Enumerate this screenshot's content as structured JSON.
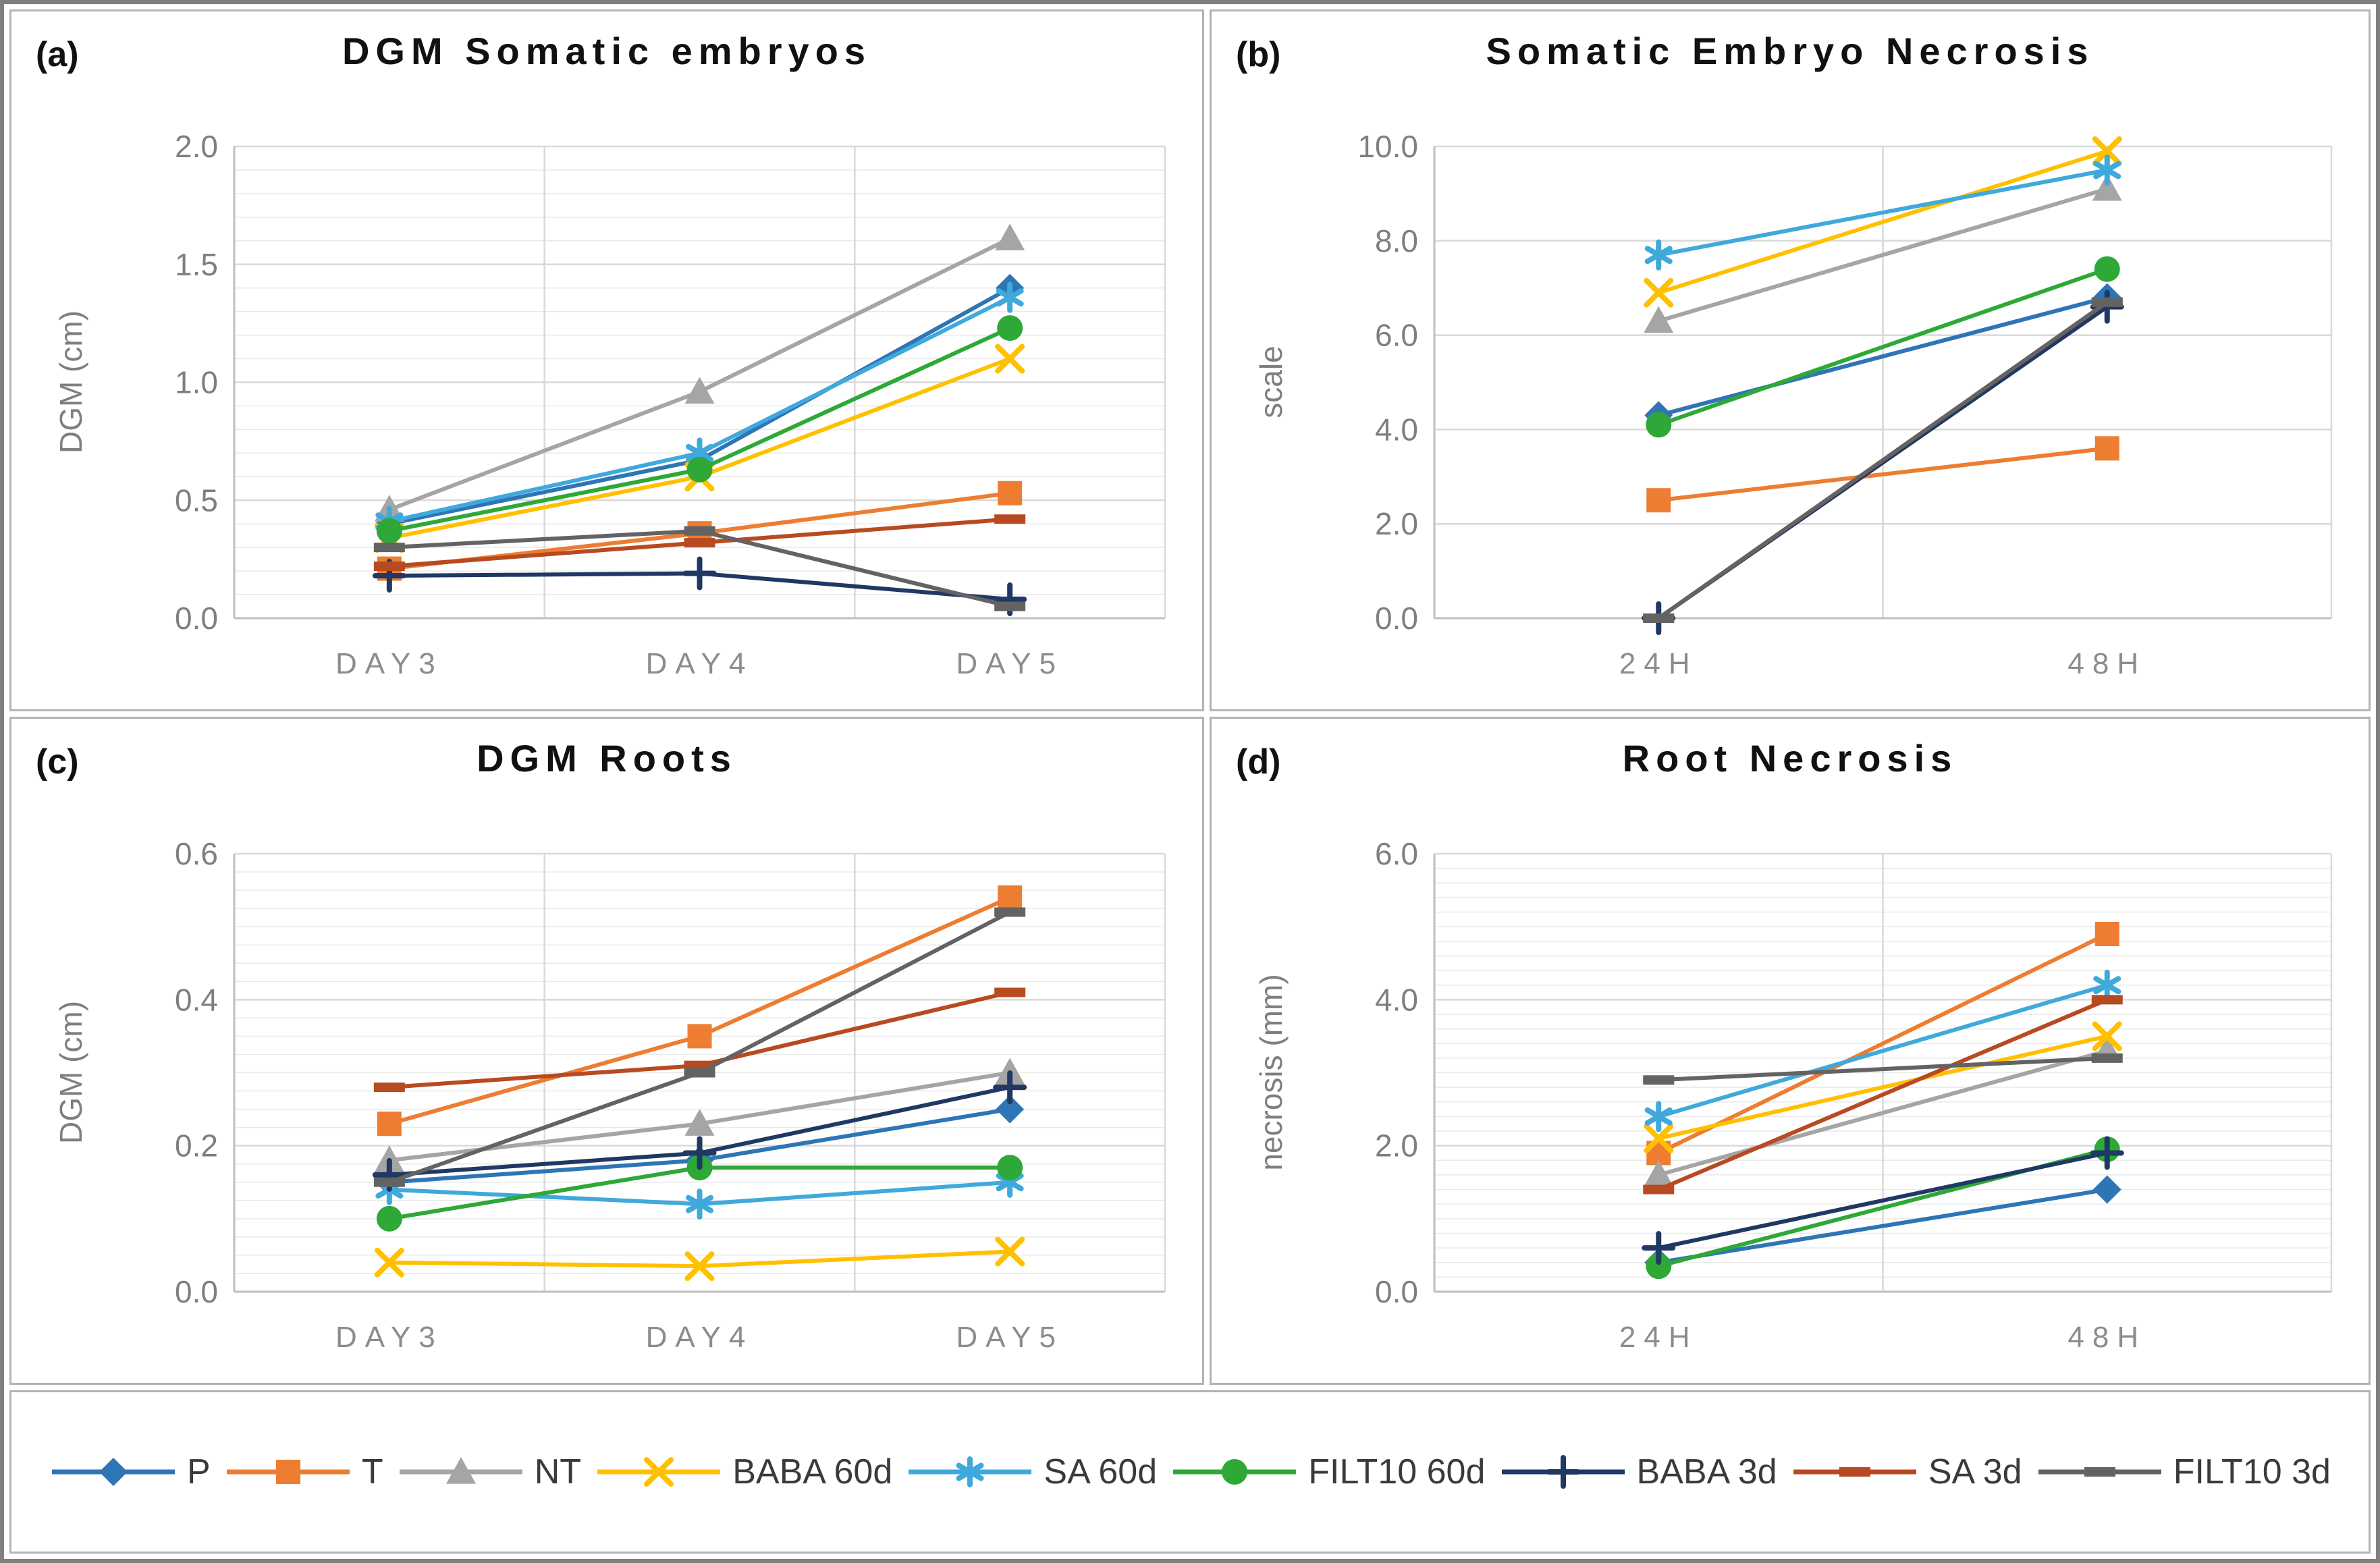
{
  "figure": {
    "background": "#FFFFFF",
    "outer_border_color": "#808080",
    "panel_border_color": "#B3B3B3",
    "gridline_minor_color": "#E9E9E9",
    "gridline_major_color": "#D9D9D9",
    "axis_color": "#BFBFBF",
    "tick_text_color": "#7F7F7F"
  },
  "series_defs": [
    {
      "name": "P",
      "color": "#2E75B6",
      "marker": "diamond"
    },
    {
      "name": "T",
      "color": "#ED7D31",
      "marker": "square"
    },
    {
      "name": "NT",
      "color": "#A5A5A5",
      "marker": "triangle"
    },
    {
      "name": "BABA 60d",
      "color": "#FFC000",
      "marker": "x"
    },
    {
      "name": "SA 60d",
      "color": "#3FA9DC",
      "marker": "asterisk"
    },
    {
      "name": "FILT10 60d",
      "color": "#2EA836",
      "marker": "circle"
    },
    {
      "name": "BABA 3d",
      "color": "#1F3864",
      "marker": "plus"
    },
    {
      "name": "SA 3d",
      "color": "#B84A22",
      "marker": "dash"
    },
    {
      "name": "FILT10 3d",
      "color": "#636363",
      "marker": "dash"
    }
  ],
  "legend": {
    "position": "bottom-shared",
    "items": [
      "P",
      "T",
      "NT",
      "BABA 60d",
      "SA 60d",
      "FILT10 60d",
      "BABA 3d",
      "SA 3d",
      "FILT10 3d"
    ]
  },
  "chart_data": [
    {
      "id": "a",
      "tag": "(a)",
      "title": "DGM Somatic embryos",
      "type": "line",
      "categories": [
        "DAY3",
        "DAY4",
        "DAY5"
      ],
      "xlabel": "",
      "ylabel": "DGM (cm)",
      "ylim": [
        0,
        2.0
      ],
      "ytick_step": 0.5,
      "minor_step": 0.1,
      "grid": true,
      "series": [
        {
          "name": "P",
          "values": [
            0.4,
            0.67,
            1.4
          ]
        },
        {
          "name": "T",
          "values": [
            0.21,
            0.36,
            0.53
          ]
        },
        {
          "name": "NT",
          "values": [
            0.46,
            0.96,
            1.61
          ]
        },
        {
          "name": "BABA 60d",
          "values": [
            0.34,
            0.6,
            1.1
          ]
        },
        {
          "name": "SA 60d",
          "values": [
            0.41,
            0.7,
            1.36
          ]
        },
        {
          "name": "FILT10 60d",
          "values": [
            0.37,
            0.63,
            1.23
          ]
        },
        {
          "name": "BABA 3d",
          "values": [
            0.18,
            0.19,
            0.08
          ]
        },
        {
          "name": "SA 3d",
          "values": [
            0.22,
            0.32,
            0.42
          ]
        },
        {
          "name": "FILT10 3d",
          "values": [
            0.3,
            0.37,
            0.05
          ]
        }
      ]
    },
    {
      "id": "b",
      "tag": "(b)",
      "title": "Somatic Embryo Necrosis",
      "type": "line",
      "categories": [
        "24H",
        "48H"
      ],
      "xlabel": "",
      "ylabel": "scale",
      "ylim": [
        0,
        10.0
      ],
      "ytick_step": 2.0,
      "minor_step": 0,
      "grid": true,
      "series": [
        {
          "name": "P",
          "values": [
            4.3,
            6.8
          ]
        },
        {
          "name": "T",
          "values": [
            2.5,
            3.6
          ]
        },
        {
          "name": "NT",
          "values": [
            6.3,
            9.1
          ]
        },
        {
          "name": "BABA 60d",
          "values": [
            6.9,
            9.9
          ]
        },
        {
          "name": "SA 60d",
          "values": [
            7.7,
            9.5
          ]
        },
        {
          "name": "FILT10 60d",
          "values": [
            4.1,
            7.4
          ]
        },
        {
          "name": "BABA 3d",
          "values": [
            0.0,
            6.6
          ]
        },
        {
          "name": "SA 3d",
          "values": [
            0.0,
            6.7
          ]
        },
        {
          "name": "FILT10 3d",
          "values": [
            0.0,
            6.7
          ]
        }
      ]
    },
    {
      "id": "c",
      "tag": "(c)",
      "title": "DGM Roots",
      "type": "line",
      "categories": [
        "DAY3",
        "DAY4",
        "DAY5"
      ],
      "xlabel": "",
      "ylabel": "DGM (cm)",
      "ylim": [
        0,
        0.6
      ],
      "ytick_step": 0.2,
      "minor_step": 0.025,
      "grid": true,
      "series": [
        {
          "name": "P",
          "values": [
            0.15,
            0.18,
            0.25
          ]
        },
        {
          "name": "T",
          "values": [
            0.23,
            0.35,
            0.54
          ]
        },
        {
          "name": "NT",
          "values": [
            0.18,
            0.23,
            0.3
          ]
        },
        {
          "name": "BABA 60d",
          "values": [
            0.04,
            0.035,
            0.055
          ]
        },
        {
          "name": "SA 60d",
          "values": [
            0.14,
            0.12,
            0.15
          ]
        },
        {
          "name": "FILT10 60d",
          "values": [
            0.1,
            0.17,
            0.17
          ]
        },
        {
          "name": "BABA 3d",
          "values": [
            0.16,
            0.19,
            0.28
          ]
        },
        {
          "name": "SA 3d",
          "values": [
            0.28,
            0.31,
            0.41
          ]
        },
        {
          "name": "FILT10 3d",
          "values": [
            0.15,
            0.3,
            0.52
          ]
        }
      ]
    },
    {
      "id": "d",
      "tag": "(d)",
      "title": "Root Necrosis",
      "type": "line",
      "categories": [
        "24H",
        "48H"
      ],
      "xlabel": "",
      "ylabel": "necrosis (mm)",
      "ylim": [
        0,
        6.0
      ],
      "ytick_step": 2.0,
      "minor_step": 0.2,
      "grid": true,
      "series": [
        {
          "name": "P",
          "values": [
            0.4,
            1.4
          ]
        },
        {
          "name": "T",
          "values": [
            1.9,
            4.9
          ]
        },
        {
          "name": "NT",
          "values": [
            1.6,
            3.3
          ]
        },
        {
          "name": "BABA 60d",
          "values": [
            2.1,
            3.5
          ]
        },
        {
          "name": "SA 60d",
          "values": [
            2.4,
            4.2
          ]
        },
        {
          "name": "FILT10 60d",
          "values": [
            0.35,
            1.95
          ]
        },
        {
          "name": "BABA 3d",
          "values": [
            0.6,
            1.9
          ]
        },
        {
          "name": "SA 3d",
          "values": [
            1.4,
            4.0
          ]
        },
        {
          "name": "FILT10 3d",
          "values": [
            2.9,
            3.2
          ]
        }
      ]
    }
  ]
}
